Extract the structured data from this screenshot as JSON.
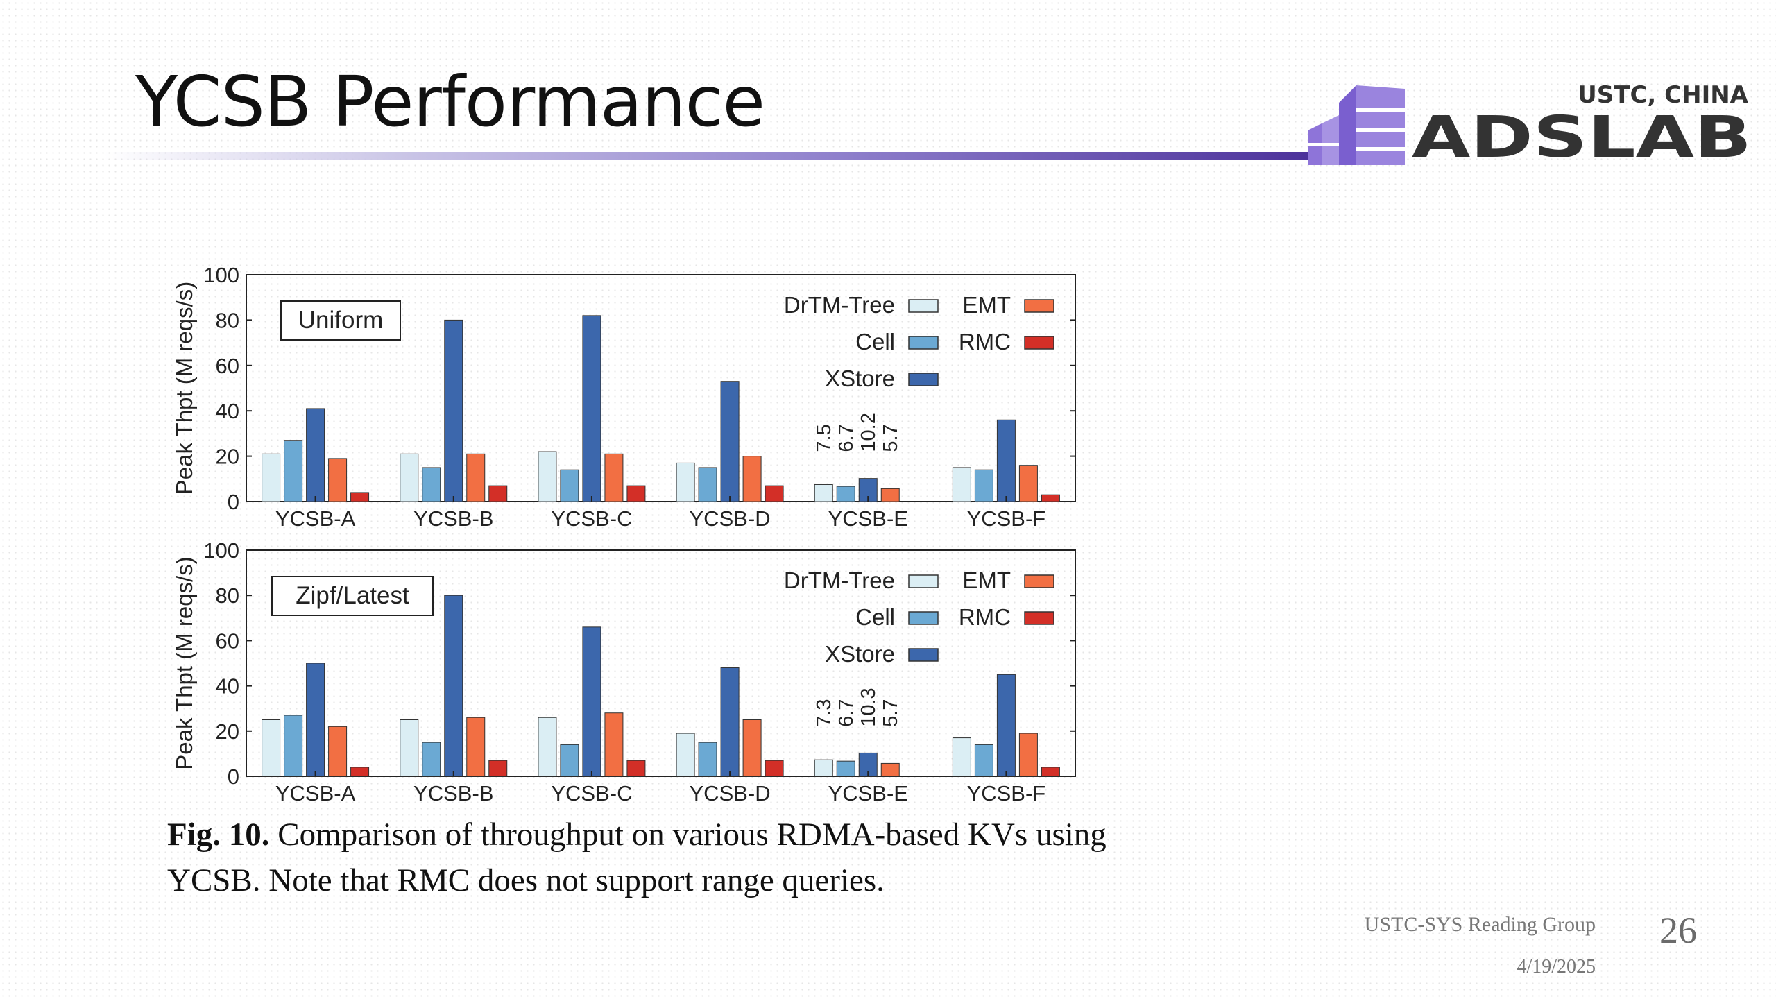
{
  "slide": {
    "title": "YCSB Performance",
    "logo_top": "USTC, CHINA",
    "logo_main": "ADSLAB",
    "footer": "USTC-SYS Reading Group",
    "date": "4/19/2025",
    "page": "26"
  },
  "caption": {
    "label": "Fig. 10.",
    "text": "Comparison of throughput on various RDMA-based KVs using YCSB. Note that RMC does not support range queries."
  },
  "colors": {
    "DrTM-Tree": "#dbeef4",
    "Cell": "#6ba9d3",
    "XStore": "#3c67ac",
    "EMT": "#f26f43",
    "RMC": "#d32f27",
    "title_rule_end": "#4a2f99",
    "logo_purple": "#8e74d9"
  },
  "chart_data": [
    {
      "type": "bar",
      "panel_label": "Uniform",
      "ylabel": "Peak Thpt (M reqs/s)",
      "ylim": [
        0,
        100
      ],
      "yticks": [
        0,
        20,
        40,
        60,
        80,
        100
      ],
      "legend_position": "top-right",
      "categories": [
        "YCSB-A",
        "YCSB-B",
        "YCSB-C",
        "YCSB-D",
        "YCSB-E",
        "YCSB-F"
      ],
      "series": [
        {
          "name": "DrTM-Tree",
          "values": [
            21,
            21,
            22,
            17,
            7.5,
            15
          ]
        },
        {
          "name": "Cell",
          "values": [
            27,
            15,
            14,
            15,
            6.7,
            14
          ]
        },
        {
          "name": "XStore",
          "values": [
            41,
            80,
            82,
            53,
            10.2,
            36
          ]
        },
        {
          "name": "EMT",
          "values": [
            19,
            21,
            21,
            20,
            5.7,
            16
          ]
        },
        {
          "name": "RMC",
          "values": [
            4,
            7,
            7,
            7,
            null,
            3
          ]
        }
      ],
      "annotations": [
        {
          "category": "YCSB-E",
          "series": "DrTM-Tree",
          "text": "7.5"
        },
        {
          "category": "YCSB-E",
          "series": "Cell",
          "text": "6.7"
        },
        {
          "category": "YCSB-E",
          "series": "XStore",
          "text": "10.2"
        },
        {
          "category": "YCSB-E",
          "series": "EMT",
          "text": "5.7"
        }
      ]
    },
    {
      "type": "bar",
      "panel_label": "Zipf/Latest",
      "ylabel": "Peak Thpt (M reqs/s)",
      "ylim": [
        0,
        100
      ],
      "yticks": [
        0,
        20,
        40,
        60,
        80,
        100
      ],
      "legend_position": "top-right",
      "categories": [
        "YCSB-A",
        "YCSB-B",
        "YCSB-C",
        "YCSB-D",
        "YCSB-E",
        "YCSB-F"
      ],
      "series": [
        {
          "name": "DrTM-Tree",
          "values": [
            25,
            25,
            26,
            19,
            7.3,
            17
          ]
        },
        {
          "name": "Cell",
          "values": [
            27,
            15,
            14,
            15,
            6.7,
            14
          ]
        },
        {
          "name": "XStore",
          "values": [
            50,
            80,
            66,
            48,
            10.3,
            45
          ]
        },
        {
          "name": "EMT",
          "values": [
            22,
            26,
            28,
            25,
            5.7,
            19
          ]
        },
        {
          "name": "RMC",
          "values": [
            4,
            7,
            7,
            7,
            null,
            4
          ]
        }
      ],
      "annotations": [
        {
          "category": "YCSB-E",
          "series": "DrTM-Tree",
          "text": "7.3"
        },
        {
          "category": "YCSB-E",
          "series": "Cell",
          "text": "6.7"
        },
        {
          "category": "YCSB-E",
          "series": "XStore",
          "text": "10.3"
        },
        {
          "category": "YCSB-E",
          "series": "EMT",
          "text": "5.7"
        }
      ]
    }
  ]
}
